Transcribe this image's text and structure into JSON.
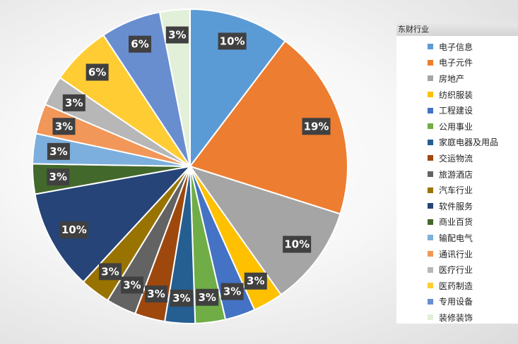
{
  "chart_data": {
    "type": "pie",
    "legend_title": "东财行业",
    "legend_position": "right",
    "slices": [
      {
        "name": "电子信息",
        "value": 10,
        "label": "10%",
        "color": "#5B9BD5"
      },
      {
        "name": "电子元件",
        "value": 19,
        "label": "19%",
        "color": "#ED7D31"
      },
      {
        "name": "房地产",
        "value": 10,
        "label": "10%",
        "color": "#A5A5A5"
      },
      {
        "name": "纺织服装",
        "value": 3,
        "label": "3%",
        "color": "#FFC000"
      },
      {
        "name": "工程建设",
        "value": 3,
        "label": "3%",
        "color": "#4472C4"
      },
      {
        "name": "公用事业",
        "value": 3,
        "label": "3%",
        "color": "#70AD47"
      },
      {
        "name": "家庭电器及用品",
        "value": 3,
        "label": "3%",
        "color": "#255E91"
      },
      {
        "name": "交运物流",
        "value": 3,
        "label": "3%",
        "color": "#9E480E"
      },
      {
        "name": "旅游酒店",
        "value": 3,
        "label": "3%",
        "color": "#636363"
      },
      {
        "name": "汽车行业",
        "value": 3,
        "label": "3%",
        "color": "#997300"
      },
      {
        "name": "软件服务",
        "value": 10,
        "label": "10%",
        "color": "#264478"
      },
      {
        "name": "商业百货",
        "value": 3,
        "label": "3%",
        "color": "#43682B"
      },
      {
        "name": "输配电气",
        "value": 3,
        "label": "3%",
        "color": "#7CAFDD"
      },
      {
        "name": "通讯行业",
        "value": 3,
        "label": "3%",
        "color": "#F1975A"
      },
      {
        "name": "医疗行业",
        "value": 3,
        "label": "3%",
        "color": "#B7B7B7"
      },
      {
        "name": "医药制造",
        "value": 6,
        "label": "6%",
        "color": "#FFCD33"
      },
      {
        "name": "专用设备",
        "value": 6,
        "label": "6%",
        "color": "#698ED0"
      },
      {
        "name": "装修装饰",
        "value": 3,
        "label": "3%",
        "color": "#E2F0D9"
      }
    ]
  }
}
